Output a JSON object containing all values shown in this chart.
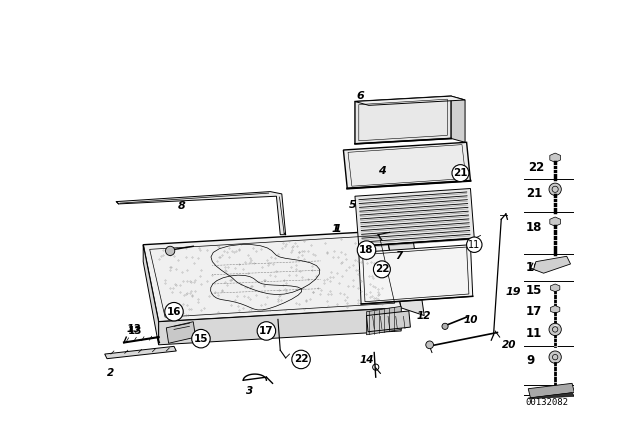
{
  "bg_color": "#ffffff",
  "fig_width": 6.4,
  "fig_height": 4.48,
  "dpi": 100,
  "part_number_text": "00132082",
  "line_color": "#000000",
  "lw": 0.7
}
